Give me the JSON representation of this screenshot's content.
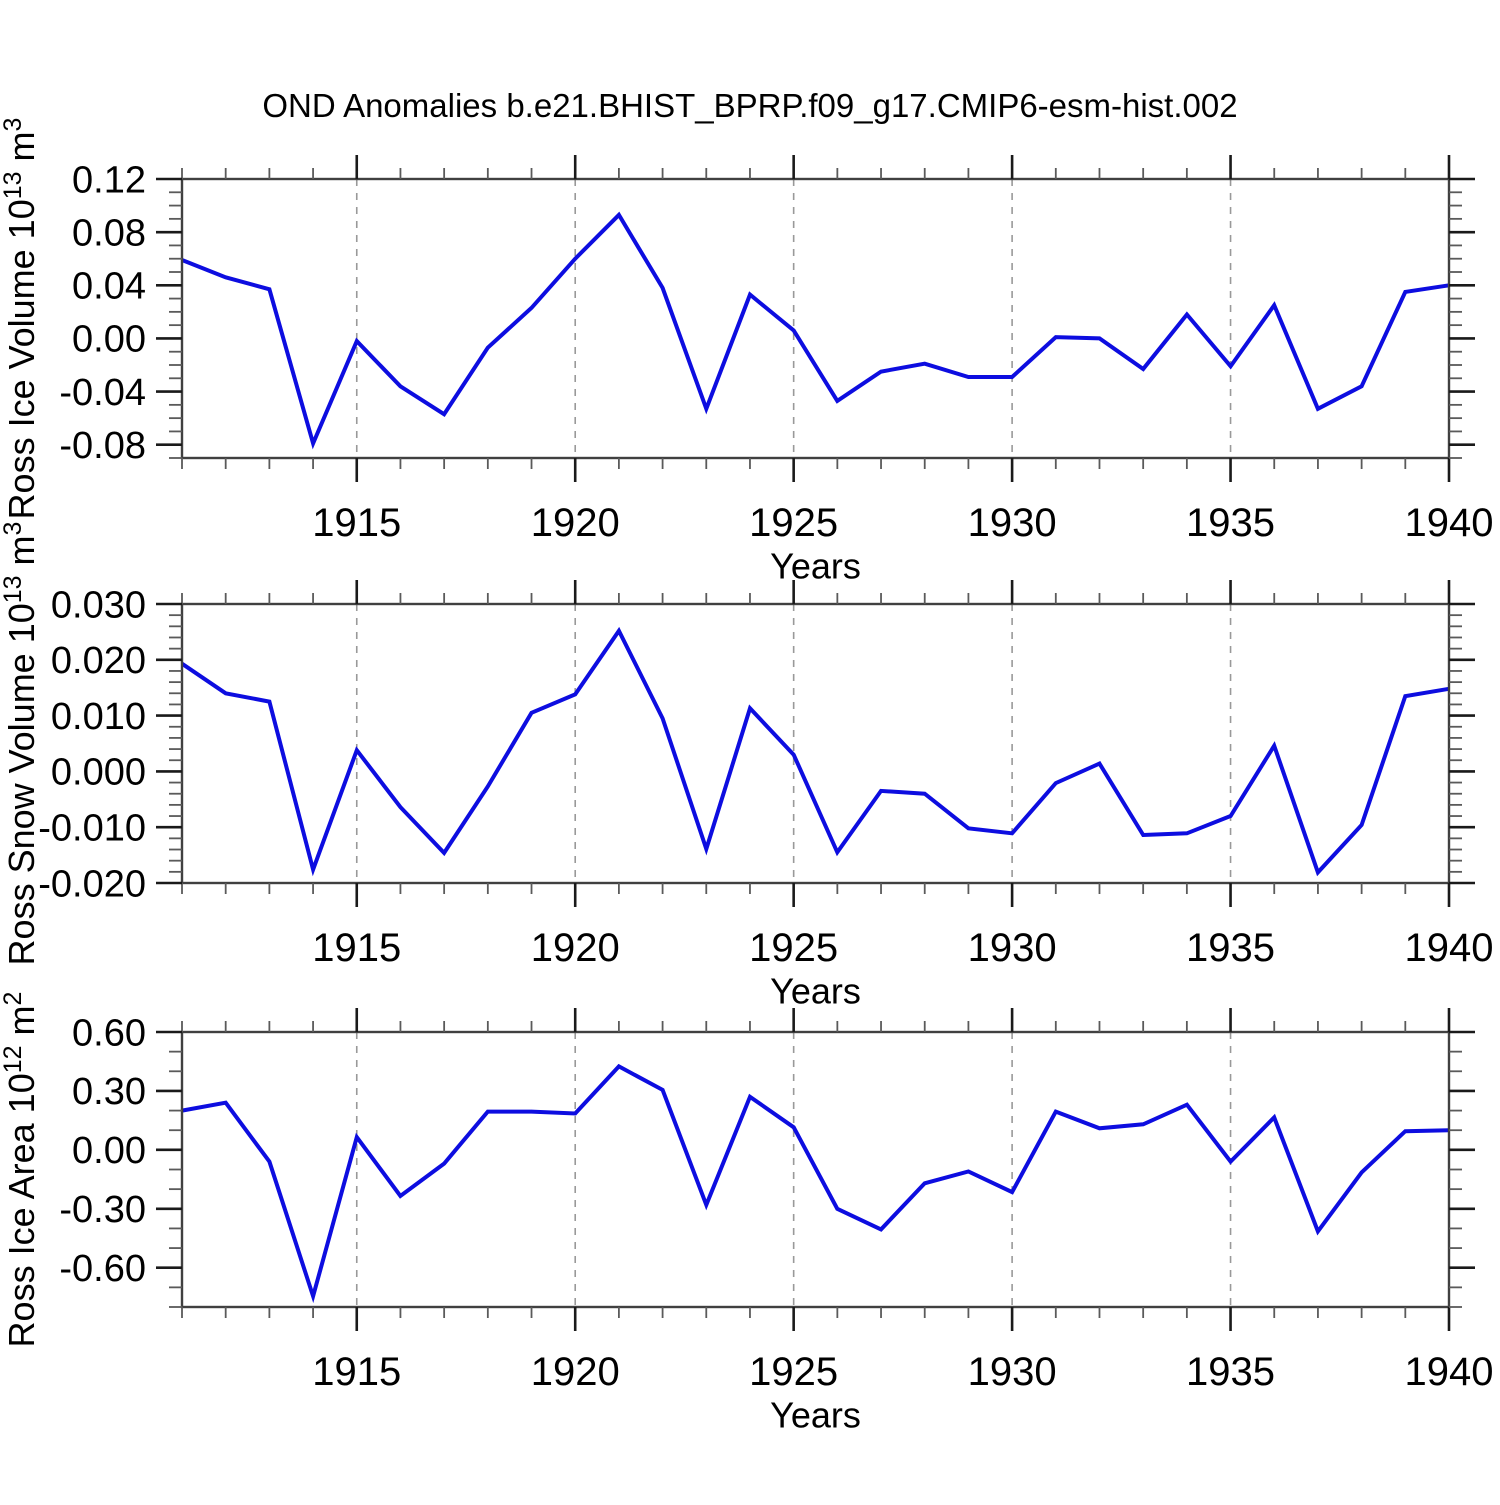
{
  "title": "OND Anomalies b.e21.BHIST_BPRP.f09_g17.CMIP6-esm-hist.002",
  "colors": {
    "line": "#0d0de0",
    "frame": "#404040",
    "tick_major": "#1a1a1a",
    "tick_minor": "#5a5a5a",
    "grid": "#999999",
    "text": "#000000",
    "background": "#ffffff"
  },
  "axes": {
    "xlabel": "Years",
    "x_range": [
      1911,
      1940
    ],
    "x_major_ticks": [
      1915,
      1920,
      1925,
      1930,
      1935,
      1940
    ],
    "x_grid_years": [
      1915,
      1920,
      1925,
      1930,
      1935
    ]
  },
  "chart_data": {
    "type": "line",
    "title": "OND Anomalies b.e21.BHIST_BPRP.f09_g17.CMIP6-esm-hist.002",
    "xlabel": "Years",
    "x": [
      1911,
      1912,
      1913,
      1914,
      1915,
      1916,
      1917,
      1918,
      1919,
      1920,
      1921,
      1922,
      1923,
      1924,
      1925,
      1926,
      1927,
      1928,
      1929,
      1930,
      1931,
      1932,
      1933,
      1934,
      1935,
      1936,
      1937,
      1938,
      1939,
      1940
    ],
    "legend": "none",
    "grid": "dashed vertical at labeled years",
    "panels": [
      {
        "name": "ross-ice-volume",
        "ylabel_text": "Ross Ice Volume 10",
        "ylabel_exp": "13",
        "ylabel_unit": "m",
        "ylabel_unit_exp": "3",
        "ylim": [
          -0.09,
          0.12
        ],
        "y_minor_step": 0.01,
        "yticks": [
          {
            "v": 0.12,
            "label": "0.12"
          },
          {
            "v": 0.08,
            "label": "0.08"
          },
          {
            "v": 0.04,
            "label": "0.04"
          },
          {
            "v": 0.0,
            "label": "0.00"
          },
          {
            "v": -0.04,
            "label": "-0.04"
          },
          {
            "v": -0.08,
            "label": "-0.08"
          }
        ],
        "values": [
          0.059,
          0.046,
          0.037,
          -0.079,
          -0.002,
          -0.036,
          -0.057,
          -0.007,
          0.023,
          0.06,
          0.093,
          0.038,
          -0.053,
          0.033,
          0.006,
          -0.047,
          -0.025,
          -0.019,
          -0.029,
          -0.029,
          0.001,
          0.0,
          -0.023,
          0.018,
          -0.021,
          0.025,
          -0.053,
          -0.036,
          0.035,
          0.04
        ]
      },
      {
        "name": "ross-snow-volume",
        "ylabel_text": "Ross Snow Volume 10",
        "ylabel_exp": "13",
        "ylabel_unit": "m",
        "ylabel_unit_exp": "3",
        "ylim": [
          -0.02,
          0.03
        ],
        "y_minor_step": 0.002,
        "yticks": [
          {
            "v": 0.03,
            "label": "0.030"
          },
          {
            "v": 0.02,
            "label": "0.020"
          },
          {
            "v": 0.01,
            "label": "0.010"
          },
          {
            "v": 0.0,
            "label": "0.000"
          },
          {
            "v": -0.01,
            "label": "-0.010"
          },
          {
            "v": -0.02,
            "label": "-0.020"
          }
        ],
        "values": [
          0.0193,
          0.014,
          0.0125,
          -0.0176,
          0.0038,
          -0.0064,
          -0.0146,
          -0.0027,
          0.0105,
          0.0138,
          0.0252,
          0.0095,
          -0.0139,
          0.0113,
          0.003,
          -0.0145,
          -0.0035,
          -0.004,
          -0.0102,
          -0.0111,
          -0.0021,
          0.0014,
          -0.0114,
          -0.0111,
          -0.008,
          0.0046,
          -0.0181,
          -0.0096,
          0.0135,
          0.0148
        ]
      },
      {
        "name": "ross-ice-area",
        "ylabel_text": "Ross Ice Area 10",
        "ylabel_exp": "12",
        "ylabel_unit": "m",
        "ylabel_unit_exp": "2",
        "ylim": [
          -0.8,
          0.6
        ],
        "y_minor_step": 0.1,
        "yticks": [
          {
            "v": 0.6,
            "label": "0.60"
          },
          {
            "v": 0.3,
            "label": "0.30"
          },
          {
            "v": 0.0,
            "label": "0.00"
          },
          {
            "v": -0.3,
            "label": "-0.30"
          },
          {
            "v": -0.6,
            "label": "-0.60"
          }
        ],
        "values": [
          0.2,
          0.24,
          -0.06,
          -0.745,
          0.065,
          -0.235,
          -0.07,
          0.195,
          0.195,
          0.185,
          0.425,
          0.305,
          -0.28,
          0.27,
          0.115,
          -0.3,
          -0.405,
          -0.17,
          -0.11,
          -0.215,
          0.195,
          0.11,
          0.13,
          0.23,
          -0.06,
          0.165,
          -0.415,
          -0.115,
          0.095,
          0.1
        ]
      }
    ]
  }
}
